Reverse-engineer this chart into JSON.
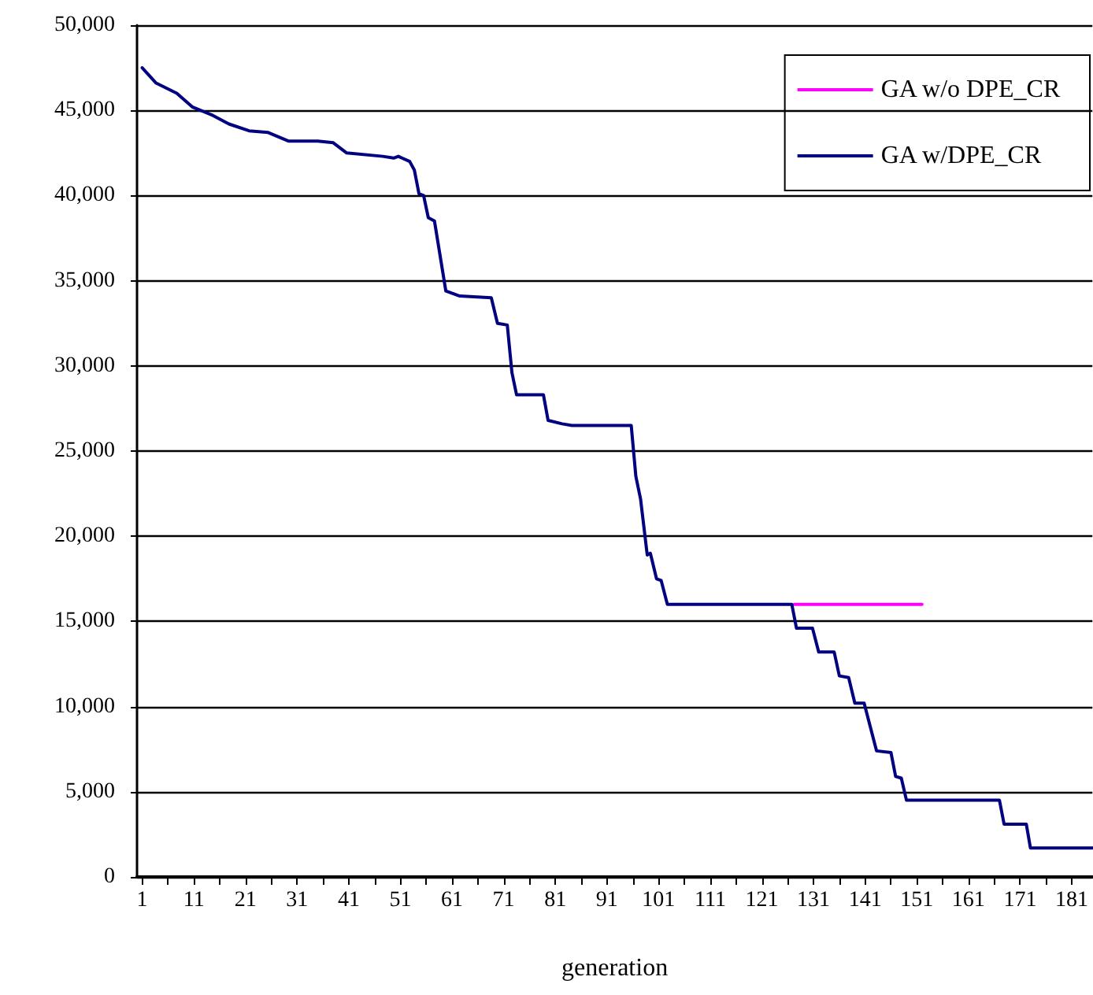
{
  "chart_data": {
    "type": "line",
    "xlabel": "generation",
    "xlim": [
      0,
      185
    ],
    "xticks": [
      1,
      {
        "value": 6,
        "label": null
      },
      11,
      {
        "value": 16,
        "label": null
      },
      21,
      {
        "value": 26,
        "label": null
      },
      31,
      {
        "value": 36,
        "label": null
      },
      41,
      {
        "value": 46,
        "label": null
      },
      51,
      {
        "value": 56,
        "label": null
      },
      61,
      {
        "value": 66,
        "label": null
      },
      71,
      {
        "value": 76,
        "label": null
      },
      81,
      {
        "value": 86,
        "label": null
      },
      91,
      {
        "value": 96,
        "label": null
      },
      101,
      {
        "value": 106,
        "label": null
      },
      111,
      {
        "value": 116,
        "label": null
      },
      121,
      {
        "value": 126,
        "label": null
      },
      131,
      {
        "value": 136,
        "label": null
      },
      141,
      {
        "value": 146,
        "label": null
      },
      151,
      {
        "value": 156,
        "label": null
      },
      161,
      {
        "value": 166,
        "label": null
      },
      171,
      {
        "value": 176,
        "label": null
      },
      181
    ],
    "ylim": [
      0,
      50000
    ],
    "yticks": [
      0,
      {
        "value": 5000,
        "label": "5,000"
      },
      {
        "value": 10000,
        "label": "10,000"
      },
      {
        "value": 15000,
        "label": "15,000"
      },
      {
        "value": 20000,
        "label": "20,000"
      },
      {
        "value": 25000,
        "label": "25,000"
      },
      {
        "value": 30000,
        "label": "30,000"
      },
      {
        "value": 35000,
        "label": "35,000"
      },
      {
        "value": 40000,
        "label": "40,000"
      },
      {
        "value": 45000,
        "label": "45,000"
      },
      {
        "value": 50000,
        "label": "50,000"
      }
    ],
    "grid": "y",
    "legend": "top right",
    "marker": "none",
    "line_style": "solid",
    "series": [
      {
        "name": "GA w/o DPE_CR",
        "color": "#ff00ff",
        "x": [
          127.3,
          152
        ],
        "values": [
          16000,
          16000
        ]
      },
      {
        "name": "GA w/DPE_CR",
        "color": "#000080",
        "x": [
          1,
          3.7,
          7.7,
          10.7,
          14.7,
          17.8,
          21.7,
          25.4,
          29.3,
          35,
          38,
          40.6,
          47.6,
          49.7,
          50.6,
          52.8,
          53.7,
          54.6,
          55.5,
          56.4,
          57.6,
          59.8,
          62.5,
          68.6,
          69.8,
          71.7,
          72.6,
          73.5,
          78.7,
          79.6,
          82.3,
          84.2,
          95.7,
          96.6,
          97.5,
          98.8,
          99.4,
          100.6,
          101.5,
          102.7,
          126.8,
          127.7,
          130.8,
          132,
          135,
          136,
          137.8,
          139,
          140.8,
          143.2,
          146,
          146.9,
          148,
          149,
          167,
          167.9,
          172.2,
          173,
          185
        ],
        "values": [
          47500,
          46600,
          46000,
          45200,
          44700,
          44200,
          43800,
          43700,
          43200,
          43200,
          43100,
          42500,
          42300,
          42200,
          42300,
          42000,
          41500,
          40100,
          40000,
          38700,
          38500,
          34400,
          34100,
          34000,
          32500,
          32400,
          29600,
          28300,
          28300,
          26800,
          26600,
          26500,
          26500,
          23500,
          22200,
          18900,
          19000,
          17500,
          17400,
          16000,
          16000,
          14600,
          14600,
          13200,
          13200,
          11800,
          11700,
          10200,
          10200,
          7400,
          7300,
          5900,
          5800,
          4500,
          4500,
          3100,
          3100,
          1700,
          1700
        ]
      }
    ]
  }
}
